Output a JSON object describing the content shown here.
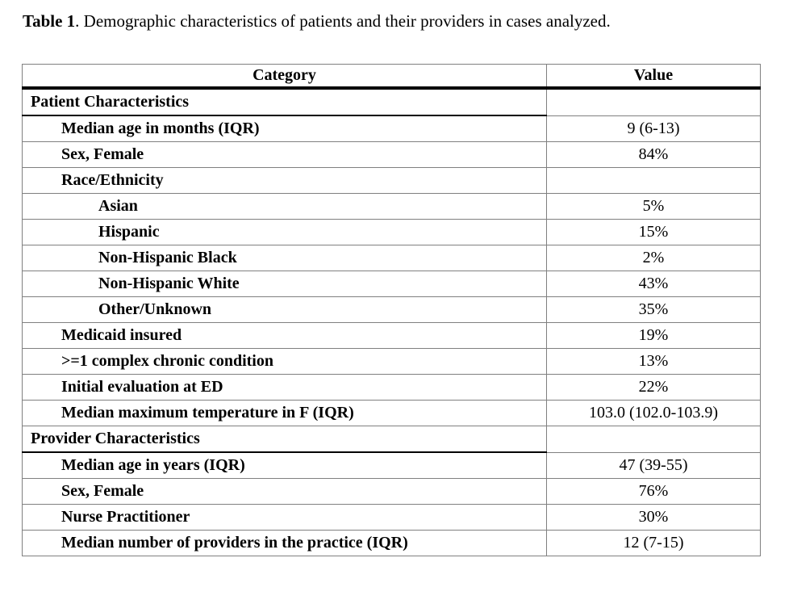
{
  "caption": {
    "label": "Table 1",
    "text": ". Demographic characteristics of patients and their providers in cases analyzed."
  },
  "colors": {
    "grid": "#808080",
    "rule": "#000000",
    "background": "#ffffff",
    "text": "#000000"
  },
  "table": {
    "headers": {
      "category": "Category",
      "value": "Value"
    },
    "rows": [
      {
        "category": "Patient Characteristics",
        "value": "",
        "indent": 0,
        "section": true
      },
      {
        "category": "Median age in months (IQR)",
        "value": "9 (6-13)",
        "indent": 1,
        "section": false
      },
      {
        "category": "Sex, Female",
        "value": "84%",
        "indent": 1,
        "section": false
      },
      {
        "category": "Race/Ethnicity",
        "value": "",
        "indent": 1,
        "section": false
      },
      {
        "category": "Asian",
        "value": "5%",
        "indent": 2,
        "section": false
      },
      {
        "category": "Hispanic",
        "value": "15%",
        "indent": 2,
        "section": false
      },
      {
        "category": "Non-Hispanic Black",
        "value": "2%",
        "indent": 2,
        "section": false
      },
      {
        "category": "Non-Hispanic White",
        "value": "43%",
        "indent": 2,
        "section": false
      },
      {
        "category": "Other/Unknown",
        "value": "35%",
        "indent": 2,
        "section": false
      },
      {
        "category": "Medicaid insured",
        "value": "19%",
        "indent": 1,
        "section": false
      },
      {
        "category": ">=1 complex chronic condition",
        "value": "13%",
        "indent": 1,
        "section": false
      },
      {
        "category": "Initial evaluation at ED",
        "value": "22%",
        "indent": 1,
        "section": false
      },
      {
        "category": "Median maximum temperature in F (IQR)",
        "value": "103.0 (102.0-103.9)",
        "indent": 1,
        "section": false
      },
      {
        "category": "Provider Characteristics",
        "value": "",
        "indent": 0,
        "section": true
      },
      {
        "category": "Median age in years (IQR)",
        "value": "47 (39-55)",
        "indent": 1,
        "section": false
      },
      {
        "category": "Sex, Female",
        "value": "76%",
        "indent": 1,
        "section": false
      },
      {
        "category": "Nurse Practitioner",
        "value": "30%",
        "indent": 1,
        "section": false
      },
      {
        "category": "Median number of providers in the practice (IQR)",
        "value": "12 (7-15)",
        "indent": 1,
        "section": false
      }
    ]
  }
}
